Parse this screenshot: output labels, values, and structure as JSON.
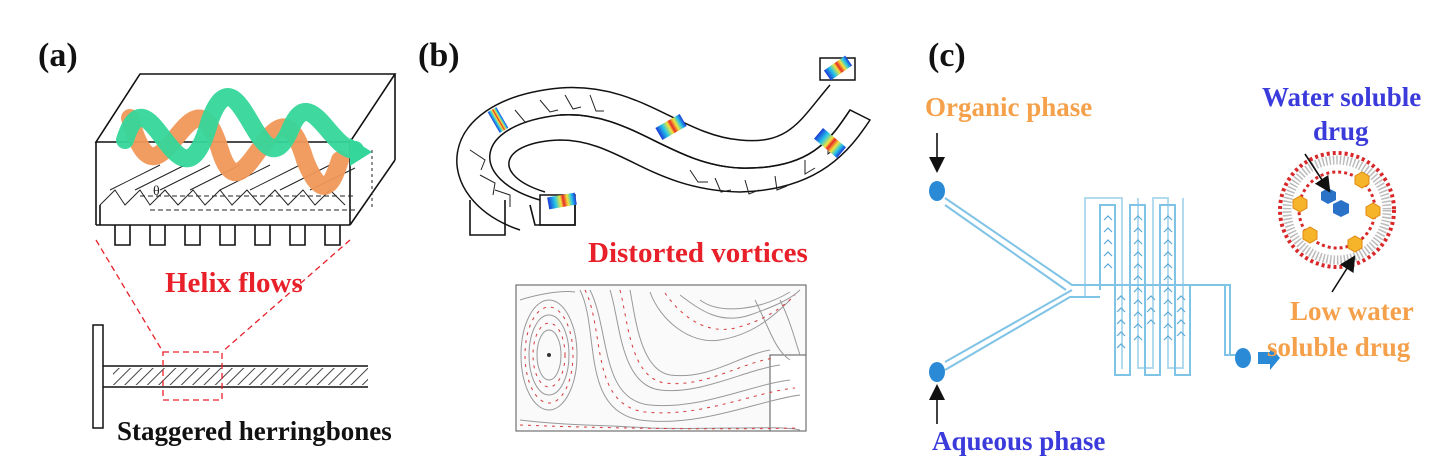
{
  "panels": {
    "a": {
      "label": "(a)",
      "caption_helix": "Helix flows",
      "caption_bottom": "Staggered herringbones",
      "angle_symbol": "θ"
    },
    "b": {
      "label": "(b)",
      "caption_vortices": "Distorted vortices"
    },
    "c": {
      "label": "(c)",
      "organic": "Organic phase",
      "aqueous": "Aqueous phase",
      "water_soluble_1": "Water soluble",
      "water_soluble_2": "drug",
      "low_water_1": "Low water",
      "low_water_2": "soluble drug"
    }
  },
  "colors": {
    "helix_red": "#e8202a",
    "orange_text": "#f5a04a",
    "blue_text": "#3b3bdb",
    "green_helix": "#35d69a",
    "orange_helix": "#f0985a",
    "channel_blue": "#7fc3e6",
    "node_blue": "#2a8ad6",
    "hex_orange": "#f5b42a",
    "hex_blue": "#2a72c8",
    "lipid_red": "#d8282a"
  }
}
